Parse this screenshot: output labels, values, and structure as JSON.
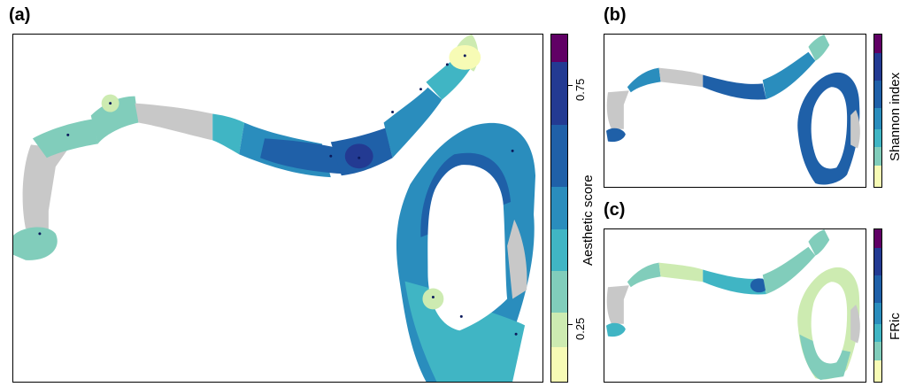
{
  "panels": {
    "a": {
      "label": "(a)",
      "legend_title": "Aesthetic score",
      "ticks": [
        "0.25",
        "0.75"
      ]
    },
    "b": {
      "label": "(b)",
      "legend_title": "Shannon index"
    },
    "c": {
      "label": "(c)",
      "legend_title": "FRic"
    }
  },
  "palette": [
    "#f7fbb5",
    "#cdebb1",
    "#81cdbb",
    "#40b5c4",
    "#2a8dbd",
    "#1f60a8",
    "#233a92",
    "#600065"
  ],
  "colors": {
    "no_data": "#c8c8c8",
    "sample_points": "#0b1a5c",
    "frame": "#000000"
  }
}
